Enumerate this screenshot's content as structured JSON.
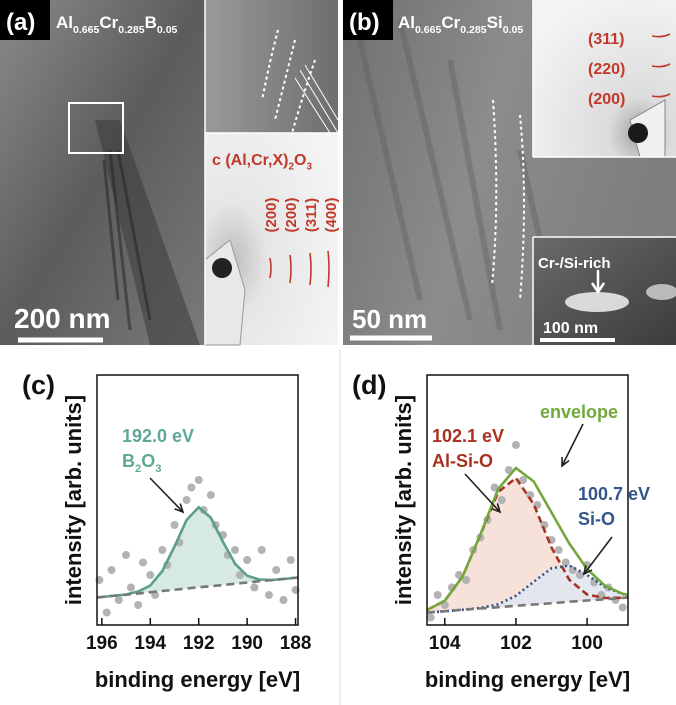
{
  "panels": [
    {
      "label": "(a)",
      "formula": [
        "Al",
        "0.665",
        "Cr",
        "0.285",
        "B",
        "0.05"
      ],
      "scale_bar": "200 nm",
      "inset_title": [
        "c (Al,Cr,X)",
        "2",
        "O",
        "3"
      ],
      "reflections": [
        "(200)",
        "(200)",
        "(311)",
        "(400)"
      ]
    },
    {
      "label": "(b)",
      "formula": [
        "Al",
        "0.665",
        "Cr",
        "0.285",
        "Si",
        "0.05"
      ],
      "scale_bar": "50 nm",
      "reflections": [
        "(311)",
        "(220)",
        "(200)"
      ],
      "inset_label": "Cr-/Si-rich",
      "inset_scale_bar": "100 nm"
    }
  ],
  "chart_data": [
    {
      "type": "line",
      "panel_label": "(c)",
      "xlabel": "binding energy [eV]",
      "ylabel": "intensity [arb. units]",
      "xlim": [
        196.2,
        187.9
      ],
      "xticks": [
        196,
        194,
        192,
        190,
        188
      ],
      "ylim": [
        0,
        1
      ],
      "x": [
        196.2,
        195.5,
        195,
        194.5,
        194,
        193.5,
        193,
        192.5,
        192,
        191.5,
        191,
        190.5,
        190,
        189.5,
        189,
        188.5,
        187.9
      ],
      "series": [
        {
          "color": "#5a9e8c",
          "dash": "none",
          "fill": "#cfe5de",
          "fill_to": 1,
          "values": [
            0.11,
            0.117,
            0.122,
            0.134,
            0.158,
            0.216,
            0.314,
            0.42,
            0.471,
            0.429,
            0.333,
            0.245,
            0.197,
            0.182,
            0.18,
            0.184,
            0.19
          ]
        },
        {
          "color": "#777777",
          "dash": "8 5",
          "values": [
            0.11,
            0.117,
            0.121,
            0.126,
            0.131,
            0.136,
            0.141,
            0.146,
            0.151,
            0.155,
            0.16,
            0.165,
            0.17,
            0.175,
            0.179,
            0.184,
            0.19
          ]
        }
      ],
      "points": {
        "color": "#b3b3b3",
        "x": [
          196.1,
          195.8,
          195.6,
          195.3,
          195.0,
          194.8,
          194.5,
          194.3,
          194.0,
          193.8,
          193.5,
          193.3,
          193.0,
          192.8,
          192.5,
          192.3,
          192.0,
          191.8,
          191.5,
          191.3,
          191.0,
          190.8,
          190.5,
          190.3,
          190.0,
          189.7,
          189.4,
          189.1,
          188.8,
          188.5,
          188.2,
          188.0
        ],
        "values": [
          0.18,
          0.05,
          0.22,
          0.1,
          0.28,
          0.15,
          0.08,
          0.25,
          0.2,
          0.12,
          0.3,
          0.24,
          0.4,
          0.33,
          0.5,
          0.55,
          0.58,
          0.46,
          0.52,
          0.4,
          0.36,
          0.28,
          0.3,
          0.2,
          0.26,
          0.15,
          0.3,
          0.12,
          0.22,
          0.1,
          0.26,
          0.14
        ]
      },
      "annotations": [
        {
          "color": "#5fa898",
          "lines": [
            [
              "192.0 eV"
            ],
            [
              "B",
              "2",
              "O",
              "3"
            ]
          ]
        }
      ]
    },
    {
      "type": "line",
      "panel_label": "(d)",
      "xlabel": "binding energy [eV]",
      "ylabel": "intensity [arb. units]",
      "xlim": [
        104.5,
        98.85
      ],
      "xticks": [
        104,
        102,
        100
      ],
      "ylim": [
        0,
        1
      ],
      "x": [
        104.5,
        104,
        103.5,
        103,
        102.5,
        102,
        101.5,
        101,
        100.5,
        100,
        99.5,
        99,
        98.85
      ],
      "series": [
        {
          "color": "#a8321f",
          "dash": "7 4",
          "fill": "#f6ddd4",
          "fill_to": 3,
          "values": [
            0.06,
            0.097,
            0.194,
            0.36,
            0.532,
            0.588,
            0.483,
            0.31,
            0.181,
            0.122,
            0.108,
            0.109,
            0.111
          ]
        },
        {
          "color": "#34558a",
          "dash": "2 3",
          "fill": "#dfe6ef",
          "fill_to": 3,
          "values": [
            0.05,
            0.055,
            0.061,
            0.068,
            0.083,
            0.117,
            0.173,
            0.227,
            0.238,
            0.2,
            0.152,
            0.124,
            0.12
          ]
        },
        {
          "color": "#72a83c",
          "dash": "none",
          "values": [
            0.06,
            0.097,
            0.194,
            0.362,
            0.544,
            0.628,
            0.574,
            0.45,
            0.326,
            0.224,
            0.157,
            0.125,
            0.121
          ]
        },
        {
          "color": "#777777",
          "dash": "8 5",
          "values": [
            0.05,
            0.055,
            0.061,
            0.066,
            0.071,
            0.077,
            0.082,
            0.087,
            0.093,
            0.098,
            0.103,
            0.108,
            0.11
          ]
        }
      ],
      "points": {
        "color": "#b3b3b3",
        "x": [
          104.4,
          104.2,
          104.0,
          103.8,
          103.6,
          103.4,
          103.2,
          103.0,
          102.8,
          102.6,
          102.4,
          102.2,
          102.0,
          101.8,
          101.6,
          101.4,
          101.2,
          101.0,
          100.8,
          100.6,
          100.4,
          100.2,
          100.0,
          99.8,
          99.6,
          99.4,
          99.2,
          99.0
        ],
        "values": [
          0.03,
          0.12,
          0.08,
          0.15,
          0.2,
          0.18,
          0.3,
          0.35,
          0.42,
          0.55,
          0.5,
          0.62,
          0.72,
          0.58,
          0.52,
          0.48,
          0.4,
          0.34,
          0.3,
          0.25,
          0.22,
          0.2,
          0.24,
          0.17,
          0.12,
          0.15,
          0.1,
          0.07
        ]
      },
      "annotations": [
        {
          "color": "#72a83c",
          "lines": [
            [
              "envelope"
            ]
          ]
        },
        {
          "color": "#a8321f",
          "lines": [
            [
              "102.1 eV"
            ],
            [
              "Al-Si-O"
            ]
          ]
        },
        {
          "color": "#34558a",
          "lines": [
            [
              "100.7 eV"
            ],
            [
              "Si-O"
            ]
          ]
        }
      ]
    }
  ]
}
